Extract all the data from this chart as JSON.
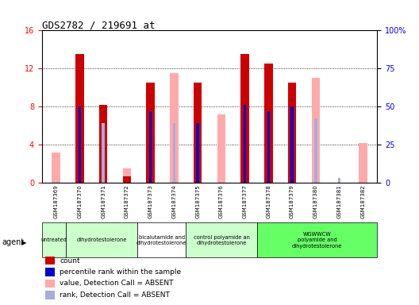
{
  "title": "GDS2782 / 219691_at",
  "samples": [
    "GSM187369",
    "GSM187370",
    "GSM187371",
    "GSM187372",
    "GSM187373",
    "GSM187374",
    "GSM187375",
    "GSM187376",
    "GSM187377",
    "GSM187378",
    "GSM187379",
    "GSM187380",
    "GSM187381",
    "GSM187382"
  ],
  "red_count": [
    0,
    13.5,
    8.2,
    0.7,
    10.5,
    0,
    10.5,
    0,
    13.5,
    12.5,
    10.5,
    0,
    0,
    0
  ],
  "blue_rank": [
    0,
    8.0,
    0,
    0,
    7.5,
    0,
    6.3,
    0,
    8.2,
    7.5,
    8.0,
    0,
    0,
    0
  ],
  "pink_value": [
    3.2,
    0,
    0,
    1.5,
    0,
    11.5,
    0,
    7.2,
    0,
    0,
    0,
    11.0,
    0,
    4.2
  ],
  "lightblue_rank": [
    0,
    0,
    6.3,
    0,
    0,
    6.3,
    0,
    0,
    0,
    0,
    0,
    6.8,
    0.5,
    0
  ],
  "ylim_left": [
    0,
    16
  ],
  "ylim_right": [
    0,
    100
  ],
  "yticks_left": [
    0,
    4,
    8,
    12,
    16
  ],
  "yticks_right": [
    0,
    25,
    50,
    75,
    100
  ],
  "bar_width": 0.35,
  "red_color": "#cc0000",
  "pink_color": "#ffaaaa",
  "blue_color": "#0000cc",
  "lightblue_color": "#aaaadd",
  "real_groups": [
    {
      "start": 0,
      "end": 0,
      "label": "untreated",
      "color": "#ccffcc"
    },
    {
      "start": 1,
      "end": 3,
      "label": "dihydrotestolerone",
      "color": "#ccffcc"
    },
    {
      "start": 4,
      "end": 5,
      "label": "bicalutamide and\ndihydrotestolerone",
      "color": "#ffffff"
    },
    {
      "start": 6,
      "end": 8,
      "label": "control polyamide an\ndihydrotestolerone",
      "color": "#ccffcc"
    },
    {
      "start": 9,
      "end": 13,
      "label": "WGWWCW\npolyamide and\ndihydrotestolerone",
      "color": "#66ff66"
    }
  ],
  "legend_items": [
    {
      "color": "#cc0000",
      "label": "count"
    },
    {
      "color": "#0000cc",
      "label": "percentile rank within the sample"
    },
    {
      "color": "#ffaaaa",
      "label": "value, Detection Call = ABSENT"
    },
    {
      "color": "#aaaadd",
      "label": "rank, Detection Call = ABSENT"
    }
  ]
}
